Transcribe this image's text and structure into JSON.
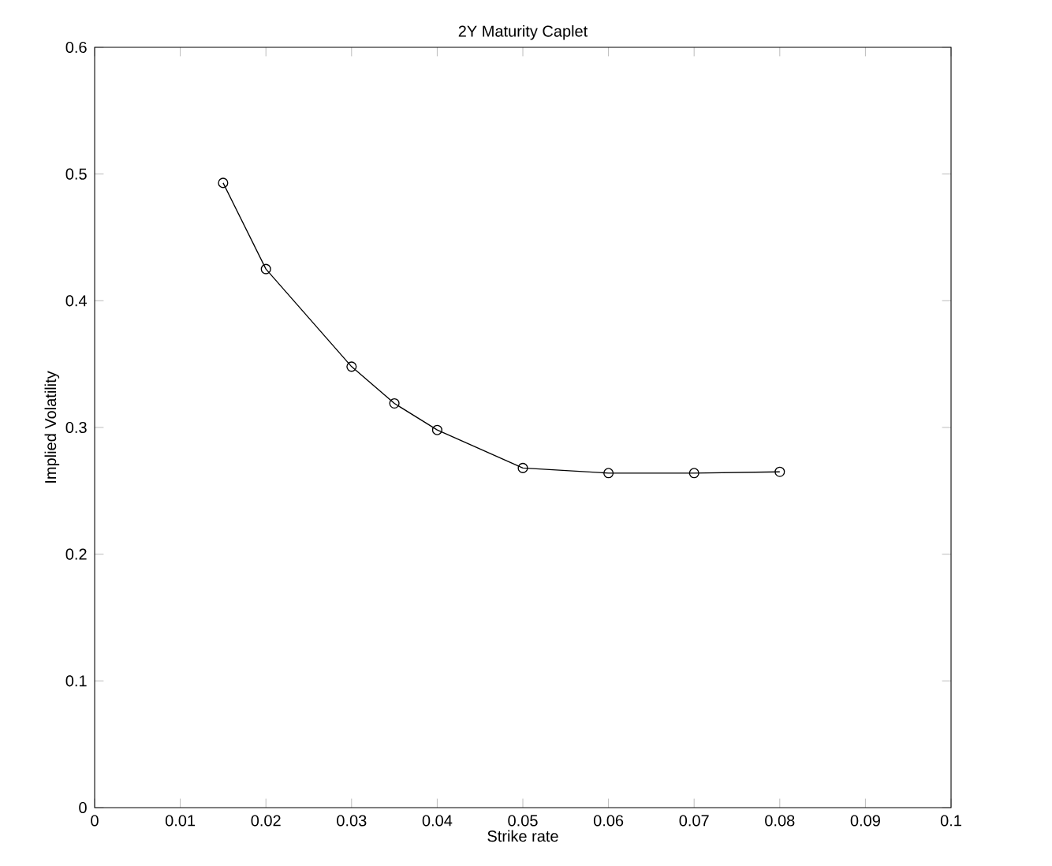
{
  "chart_data": {
    "type": "line",
    "title": "2Y Maturity Caplet",
    "xlabel": "Strike rate",
    "ylabel": "Implied Volatility",
    "x": [
      0.015,
      0.02,
      0.03,
      0.035,
      0.04,
      0.05,
      0.06,
      0.07,
      0.08
    ],
    "series": [
      {
        "color": "#000000",
        "values": [
          0.493,
          0.425,
          0.348,
          0.319,
          0.298,
          0.268,
          0.264,
          0.264,
          0.265
        ]
      }
    ],
    "xlim": [
      0,
      0.1
    ],
    "ylim": [
      0,
      0.6
    ],
    "xticks": [
      0,
      0.01,
      0.02,
      0.03,
      0.04,
      0.05,
      0.06,
      0.07,
      0.08,
      0.09,
      0.1
    ],
    "yticks": [
      0,
      0.1,
      0.2,
      0.3,
      0.4,
      0.5,
      0.6
    ],
    "marker": "circle",
    "line_style": "solid"
  }
}
